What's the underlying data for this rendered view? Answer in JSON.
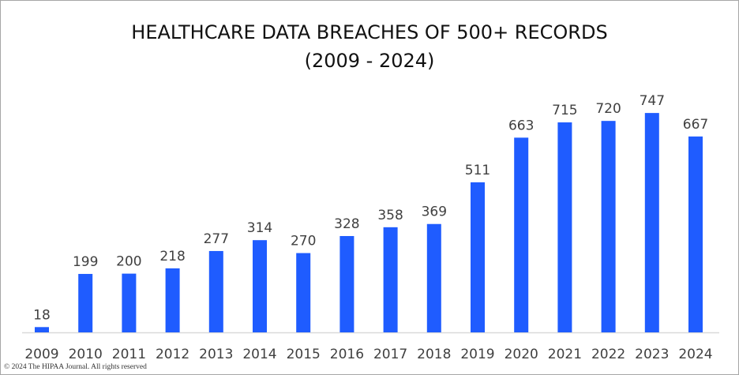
{
  "chart_data": {
    "type": "bar",
    "title": "HEALTHCARE DATA BREACHES OF 500+ RECORDS",
    "subtitle": "(2009 - 2024)",
    "categories": [
      "2009",
      "2010",
      "2011",
      "2012",
      "2013",
      "2014",
      "2015",
      "2016",
      "2017",
      "2018",
      "2019",
      "2020",
      "2021",
      "2022",
      "2023",
      "2024"
    ],
    "values": [
      18,
      199,
      200,
      218,
      277,
      314,
      270,
      328,
      358,
      369,
      511,
      663,
      715,
      720,
      747,
      667
    ],
    "xlabel": "",
    "ylabel": "",
    "ylim": [
      0,
      800
    ],
    "grid": false,
    "data_labels": true,
    "bar_color": "#1f5cff"
  },
  "footer": {
    "copyright": "© 2024 The HIPAA Journal. All rights reserved"
  }
}
